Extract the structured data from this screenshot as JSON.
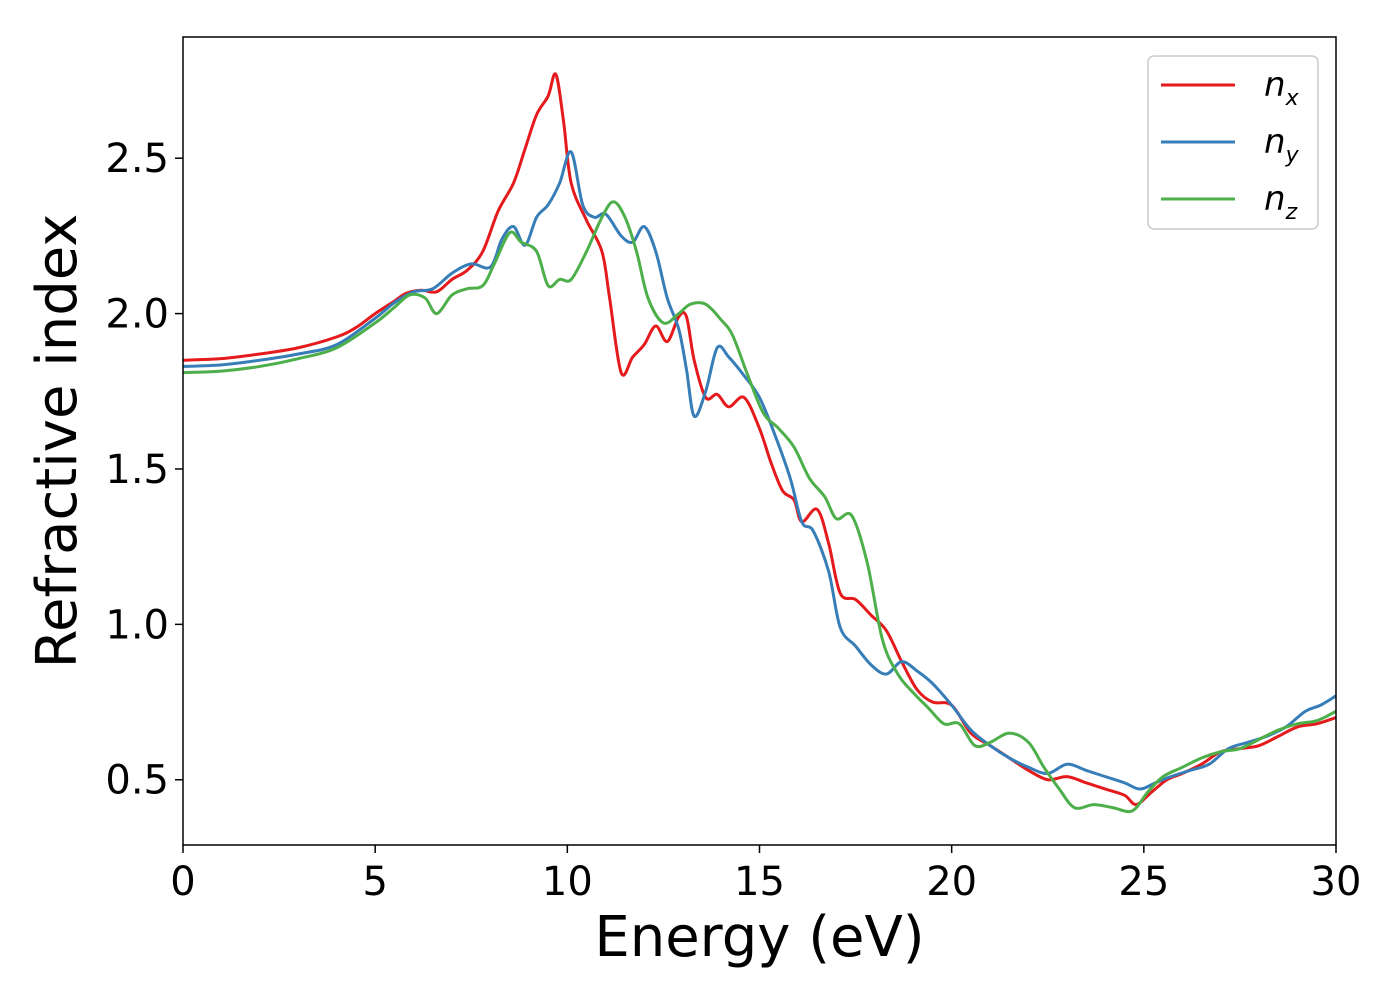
{
  "chart_data": {
    "type": "line",
    "title": "",
    "xlabel": "Energy (eV)",
    "ylabel": "Refractive index",
    "xlim": [
      0,
      30
    ],
    "ylim": [
      0.29,
      2.89
    ],
    "x_ticks": [
      0,
      5,
      10,
      15,
      20,
      25,
      30
    ],
    "x_tick_labels": [
      "0",
      "5",
      "10",
      "15",
      "20",
      "25",
      "30"
    ],
    "y_ticks": [
      0.5,
      1.0,
      1.5,
      2.0,
      2.5
    ],
    "y_tick_labels": [
      "0.5",
      "1.0",
      "1.5",
      "2.0",
      "2.5"
    ],
    "grid": false,
    "legend_position": "top-right",
    "series": [
      {
        "key": "nx",
        "name": "n_x",
        "legend_base": "n",
        "legend_sub": "x",
        "color": "#e41a1c",
        "points": [
          [
            0,
            1.85
          ],
          [
            1,
            1.855
          ],
          [
            2,
            1.87
          ],
          [
            3,
            1.89
          ],
          [
            4,
            1.925
          ],
          [
            4.5,
            1.955
          ],
          [
            5,
            2.0
          ],
          [
            5.5,
            2.04
          ],
          [
            5.8,
            2.065
          ],
          [
            6.2,
            2.075
          ],
          [
            6.6,
            2.07
          ],
          [
            7,
            2.11
          ],
          [
            7.4,
            2.14
          ],
          [
            7.8,
            2.2
          ],
          [
            8.2,
            2.33
          ],
          [
            8.6,
            2.42
          ],
          [
            8.9,
            2.53
          ],
          [
            9.2,
            2.64
          ],
          [
            9.5,
            2.7
          ],
          [
            9.7,
            2.77
          ],
          [
            9.9,
            2.62
          ],
          [
            10.1,
            2.42
          ],
          [
            10.5,
            2.3
          ],
          [
            10.9,
            2.2
          ],
          [
            11.1,
            2.05
          ],
          [
            11.4,
            1.81
          ],
          [
            11.7,
            1.86
          ],
          [
            12.0,
            1.9
          ],
          [
            12.3,
            1.96
          ],
          [
            12.6,
            1.91
          ],
          [
            12.9,
            1.99
          ],
          [
            13.1,
            1.99
          ],
          [
            13.3,
            1.85
          ],
          [
            13.6,
            1.73
          ],
          [
            13.9,
            1.74
          ],
          [
            14.2,
            1.7
          ],
          [
            14.6,
            1.73
          ],
          [
            15.0,
            1.63
          ],
          [
            15.3,
            1.52
          ],
          [
            15.6,
            1.43
          ],
          [
            15.9,
            1.4
          ],
          [
            16.1,
            1.33
          ],
          [
            16.5,
            1.37
          ],
          [
            16.8,
            1.26
          ],
          [
            17.1,
            1.1
          ],
          [
            17.5,
            1.08
          ],
          [
            17.9,
            1.03
          ],
          [
            18.3,
            0.98
          ],
          [
            18.7,
            0.88
          ],
          [
            19.1,
            0.79
          ],
          [
            19.5,
            0.75
          ],
          [
            20.0,
            0.74
          ],
          [
            20.5,
            0.65
          ],
          [
            21.0,
            0.61
          ],
          [
            21.5,
            0.57
          ],
          [
            22.0,
            0.53
          ],
          [
            22.5,
            0.5
          ],
          [
            23.0,
            0.51
          ],
          [
            23.5,
            0.49
          ],
          [
            24.0,
            0.47
          ],
          [
            24.5,
            0.45
          ],
          [
            24.8,
            0.42
          ],
          [
            25.2,
            0.46
          ],
          [
            25.6,
            0.5
          ],
          [
            26.0,
            0.52
          ],
          [
            26.5,
            0.55
          ],
          [
            27.0,
            0.59
          ],
          [
            27.5,
            0.6
          ],
          [
            28.0,
            0.61
          ],
          [
            28.5,
            0.64
          ],
          [
            29.0,
            0.67
          ],
          [
            29.5,
            0.68
          ],
          [
            30.0,
            0.7
          ]
        ]
      },
      {
        "key": "ny",
        "name": "n_y",
        "legend_base": "n",
        "legend_sub": "y",
        "color": "#377eb8",
        "points": [
          [
            0,
            1.83
          ],
          [
            1,
            1.835
          ],
          [
            2,
            1.85
          ],
          [
            3,
            1.87
          ],
          [
            4,
            1.9
          ],
          [
            5,
            1.985
          ],
          [
            5.5,
            2.035
          ],
          [
            6.0,
            2.07
          ],
          [
            6.5,
            2.08
          ],
          [
            7.0,
            2.13
          ],
          [
            7.5,
            2.16
          ],
          [
            8.0,
            2.15
          ],
          [
            8.3,
            2.24
          ],
          [
            8.6,
            2.28
          ],
          [
            8.9,
            2.22
          ],
          [
            9.2,
            2.31
          ],
          [
            9.5,
            2.35
          ],
          [
            9.8,
            2.42
          ],
          [
            10.1,
            2.52
          ],
          [
            10.4,
            2.35
          ],
          [
            10.7,
            2.31
          ],
          [
            11.0,
            2.32
          ],
          [
            11.4,
            2.25
          ],
          [
            11.7,
            2.23
          ],
          [
            12.0,
            2.28
          ],
          [
            12.3,
            2.2
          ],
          [
            12.6,
            2.05
          ],
          [
            12.9,
            1.95
          ],
          [
            13.1,
            1.82
          ],
          [
            13.3,
            1.67
          ],
          [
            13.6,
            1.75
          ],
          [
            13.9,
            1.89
          ],
          [
            14.2,
            1.86
          ],
          [
            14.6,
            1.8
          ],
          [
            15.0,
            1.73
          ],
          [
            15.4,
            1.61
          ],
          [
            15.8,
            1.47
          ],
          [
            16.1,
            1.33
          ],
          [
            16.4,
            1.3
          ],
          [
            16.8,
            1.17
          ],
          [
            17.1,
            0.99
          ],
          [
            17.5,
            0.93
          ],
          [
            17.9,
            0.87
          ],
          [
            18.3,
            0.84
          ],
          [
            18.7,
            0.88
          ],
          [
            19.1,
            0.85
          ],
          [
            19.5,
            0.81
          ],
          [
            20.0,
            0.74
          ],
          [
            20.5,
            0.66
          ],
          [
            21.0,
            0.61
          ],
          [
            21.5,
            0.57
          ],
          [
            22.0,
            0.54
          ],
          [
            22.5,
            0.52
          ],
          [
            23.0,
            0.55
          ],
          [
            23.5,
            0.53
          ],
          [
            24.0,
            0.51
          ],
          [
            24.5,
            0.49
          ],
          [
            24.9,
            0.47
          ],
          [
            25.3,
            0.49
          ],
          [
            25.7,
            0.51
          ],
          [
            26.2,
            0.53
          ],
          [
            26.7,
            0.55
          ],
          [
            27.2,
            0.6
          ],
          [
            27.7,
            0.62
          ],
          [
            28.2,
            0.64
          ],
          [
            28.7,
            0.67
          ],
          [
            29.2,
            0.72
          ],
          [
            29.6,
            0.74
          ],
          [
            30.0,
            0.77
          ]
        ]
      },
      {
        "key": "nz",
        "name": "n_z",
        "legend_base": "n",
        "legend_sub": "z",
        "color": "#4daf4a",
        "points": [
          [
            0,
            1.81
          ],
          [
            1,
            1.815
          ],
          [
            2,
            1.83
          ],
          [
            3,
            1.855
          ],
          [
            4,
            1.89
          ],
          [
            5,
            1.97
          ],
          [
            5.5,
            2.02
          ],
          [
            5.9,
            2.06
          ],
          [
            6.3,
            2.05
          ],
          [
            6.6,
            2.0
          ],
          [
            7.0,
            2.06
          ],
          [
            7.4,
            2.08
          ],
          [
            7.8,
            2.09
          ],
          [
            8.1,
            2.16
          ],
          [
            8.5,
            2.26
          ],
          [
            8.8,
            2.23
          ],
          [
            9.2,
            2.2
          ],
          [
            9.5,
            2.09
          ],
          [
            9.8,
            2.11
          ],
          [
            10.1,
            2.11
          ],
          [
            10.5,
            2.2
          ],
          [
            10.9,
            2.31
          ],
          [
            11.2,
            2.36
          ],
          [
            11.5,
            2.31
          ],
          [
            11.8,
            2.2
          ],
          [
            12.1,
            2.05
          ],
          [
            12.5,
            1.97
          ],
          [
            12.9,
            2.0
          ],
          [
            13.2,
            2.03
          ],
          [
            13.6,
            2.03
          ],
          [
            14.0,
            1.98
          ],
          [
            14.3,
            1.93
          ],
          [
            14.7,
            1.8
          ],
          [
            15.1,
            1.68
          ],
          [
            15.5,
            1.63
          ],
          [
            15.9,
            1.57
          ],
          [
            16.3,
            1.47
          ],
          [
            16.7,
            1.41
          ],
          [
            17.0,
            1.34
          ],
          [
            17.4,
            1.35
          ],
          [
            17.8,
            1.2
          ],
          [
            18.2,
            0.95
          ],
          [
            18.6,
            0.84
          ],
          [
            19.0,
            0.78
          ],
          [
            19.4,
            0.73
          ],
          [
            19.8,
            0.68
          ],
          [
            20.2,
            0.68
          ],
          [
            20.6,
            0.61
          ],
          [
            21.0,
            0.62
          ],
          [
            21.5,
            0.65
          ],
          [
            22.0,
            0.62
          ],
          [
            22.4,
            0.54
          ],
          [
            22.8,
            0.47
          ],
          [
            23.2,
            0.41
          ],
          [
            23.7,
            0.42
          ],
          [
            24.2,
            0.41
          ],
          [
            24.7,
            0.4
          ],
          [
            25.1,
            0.46
          ],
          [
            25.5,
            0.51
          ],
          [
            26.0,
            0.54
          ],
          [
            26.5,
            0.57
          ],
          [
            27.0,
            0.59
          ],
          [
            27.5,
            0.6
          ],
          [
            28.0,
            0.63
          ],
          [
            28.5,
            0.66
          ],
          [
            29.0,
            0.68
          ],
          [
            29.5,
            0.69
          ],
          [
            30.0,
            0.72
          ]
        ]
      }
    ]
  }
}
